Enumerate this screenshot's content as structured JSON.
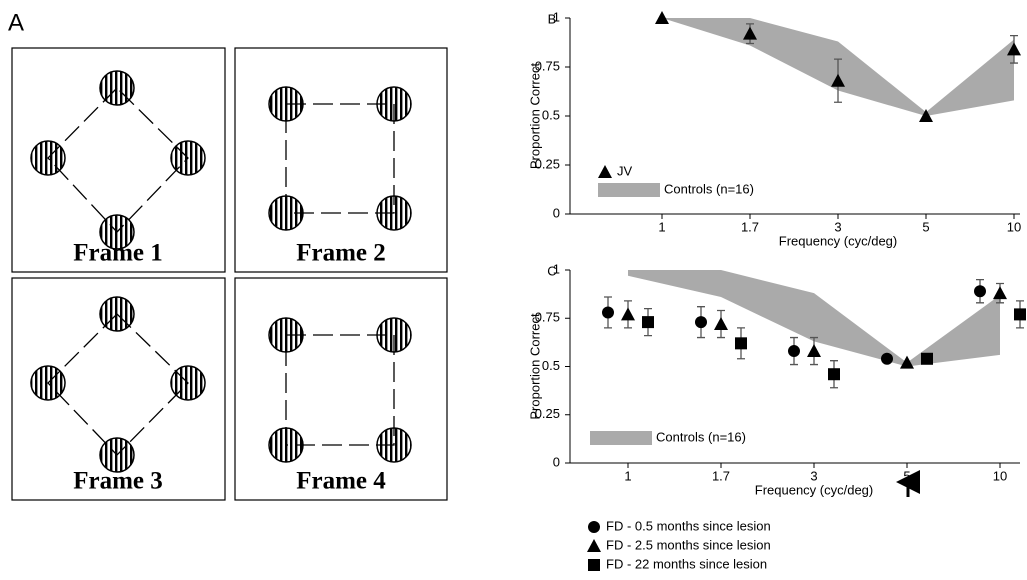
{
  "panel_a": {
    "label": "A",
    "frames": [
      {
        "label": "Frame 1"
      },
      {
        "label": "Frame 2"
      },
      {
        "label": "Frame 3"
      },
      {
        "label": "Frame 4"
      }
    ]
  },
  "chart_data": [
    {
      "type": "errorbar",
      "panel_label": "B",
      "xlabel": "Frequency (cyc/deg)",
      "ylabel": "Proportion Correct",
      "categories": [
        "1",
        "1.7",
        "3",
        "5",
        "10"
      ],
      "ylim": [
        0,
        1
      ],
      "yticks": [
        0,
        0.25,
        0.5,
        0.75,
        1
      ],
      "band": {
        "name": "Controls (n=16)",
        "color": "#aaaaaa",
        "lower": [
          1,
          0.86,
          0.63,
          0.5,
          0.58
        ],
        "upper": [
          1,
          1,
          0.88,
          0.52,
          0.89
        ]
      },
      "series": [
        {
          "name": "JV",
          "marker": "triangle",
          "color": "#000000",
          "values": [
            1,
            0.92,
            0.68,
            0.5,
            0.84
          ],
          "errors": [
            0,
            0.05,
            0.11,
            0,
            0.07
          ]
        }
      ]
    },
    {
      "type": "errorbar",
      "panel_label": "C",
      "xlabel": "Frequency (cyc/deg)",
      "ylabel": "Proportion Correct",
      "categories": [
        "1",
        "1.7",
        "3",
        "5",
        "10"
      ],
      "ylim": [
        0,
        1
      ],
      "yticks": [
        0,
        0.25,
        0.5,
        0.75,
        1
      ],
      "band": {
        "name": "Controls (n=16)",
        "color": "#aaaaaa",
        "lower": [
          0.97,
          0.86,
          0.63,
          0.5,
          0.56
        ],
        "upper": [
          1,
          1,
          0.88,
          0.52,
          0.87
        ]
      },
      "series": [
        {
          "name": "FD - 0.5 months since lesion",
          "marker": "circle",
          "color": "#000000",
          "values": [
            0.78,
            0.73,
            0.58,
            0.54,
            0.89
          ],
          "errors": [
            0.08,
            0.08,
            0.07,
            0,
            0.06
          ]
        },
        {
          "name": "FD - 2.5 months since lesion",
          "marker": "triangle",
          "color": "#000000",
          "values": [
            0.77,
            0.72,
            0.58,
            0.52,
            0.88
          ],
          "errors": [
            0.07,
            0.07,
            0.07,
            0,
            0.05
          ]
        },
        {
          "name": "FD - 22 months since lesion",
          "marker": "square",
          "color": "#000000",
          "values": [
            0.73,
            0.62,
            0.46,
            0.54,
            0.77
          ],
          "errors": [
            0.07,
            0.08,
            0.07,
            0,
            0.07
          ]
        }
      ]
    }
  ]
}
